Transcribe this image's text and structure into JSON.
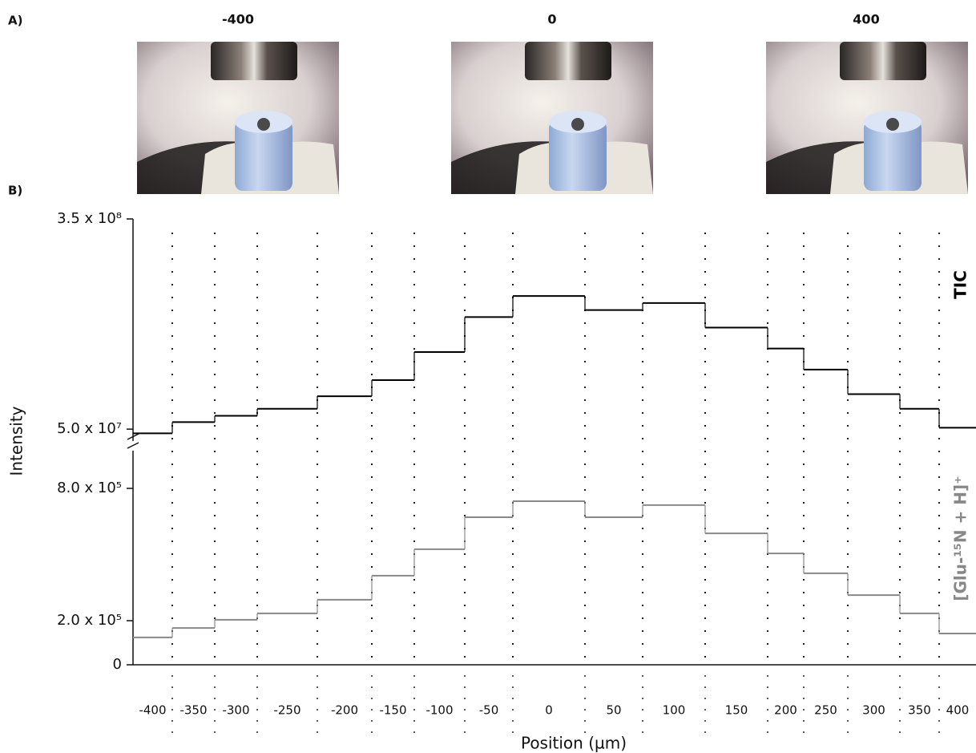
{
  "panel_labels": [
    "A)",
    "B)"
  ],
  "photos": [
    {
      "label": "-400"
    },
    {
      "label": "0"
    },
    {
      "label": "400"
    }
  ],
  "chart_data": {
    "type": "step",
    "x_label": "Position (µm)",
    "y_label": "Intensity",
    "categories": [
      -400,
      -350,
      -300,
      -250,
      -200,
      -150,
      -100,
      -50,
      0,
      50,
      100,
      150,
      200,
      250,
      300,
      350,
      400
    ],
    "grid": true,
    "series": [
      {
        "name": "TIC",
        "color": "#000000",
        "values": [
          44000000,
          60000000,
          69000000,
          79000000,
          97000000,
          120000000,
          160000000,
          210000000,
          240000000,
          220000000,
          230000000,
          195000000,
          165000000,
          135000000,
          100000000,
          79000000,
          52000000
        ],
        "ylim": [
          25000000,
          350000000
        ],
        "yticks": [
          {
            "value": 350000000,
            "label": "3.5 x 10⁸"
          },
          {
            "value": 50000000,
            "label": "5.0 x 10⁷"
          }
        ]
      },
      {
        "name": "[Glu-¹⁵N + H]⁺",
        "color": "#888888",
        "values": [
          124000,
          167000,
          204000,
          233000,
          295000,
          404000,
          524000,
          669000,
          742000,
          669000,
          724000,
          596000,
          505000,
          415000,
          316000,
          233000,
          142000
        ],
        "ylim": [
          0,
          1000000
        ],
        "yticks": [
          {
            "value": 800000,
            "label": "8.0 x 10⁵"
          },
          {
            "value": 200000,
            "label": "2.0 x 10⁵"
          },
          0
        ]
      }
    ]
  }
}
